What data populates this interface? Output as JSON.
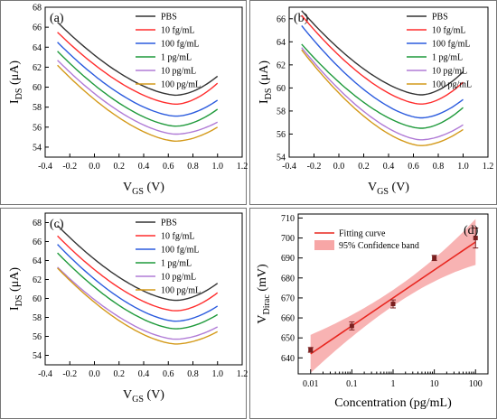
{
  "chart_data": [
    {
      "type": "line",
      "panel_label": "(a)",
      "xlabel_main": "V",
      "xlabel_sub": "GS",
      "xlabel_unit": " (V)",
      "ylabel_main": "I",
      "ylabel_sub": "DS",
      "ylabel_unit": " (μA)",
      "xlim": [
        -0.4,
        1.2
      ],
      "ylim": [
        53,
        68
      ],
      "xticks": [
        "-0.4",
        "-0.2",
        "0.0",
        "0.2",
        "0.4",
        "0.6",
        "0.8",
        "1.0",
        "1.2"
      ],
      "yticks": [
        "54",
        "56",
        "58",
        "60",
        "62",
        "64",
        "66",
        "68"
      ],
      "legend_position": "top-right",
      "series": [
        {
          "name": "PBS",
          "color": "#333333",
          "start": 66.5,
          "min": 59.2,
          "xmin": 0.66,
          "end": 61.1
        },
        {
          "name": "10 fg/mL",
          "color": "#ff2d2d",
          "start": 65.5,
          "min": 58.3,
          "xmin": 0.66,
          "end": 60.4
        },
        {
          "name": "100 fg/mL",
          "color": "#2b5bde",
          "start": 64.5,
          "min": 57.1,
          "xmin": 0.66,
          "end": 58.7
        },
        {
          "name": "1 pg/mL",
          "color": "#1f9a3b",
          "start": 63.6,
          "min": 56.1,
          "xmin": 0.66,
          "end": 57.8
        },
        {
          "name": "10 pg/mL",
          "color": "#b07bd6",
          "start": 62.7,
          "min": 55.3,
          "xmin": 0.66,
          "end": 56.5
        },
        {
          "name": "100 pg/mL",
          "color": "#d49a1a",
          "start": 62.2,
          "min": 54.6,
          "xmin": 0.66,
          "end": 56.0
        }
      ]
    },
    {
      "type": "line",
      "panel_label": "(b)",
      "xlabel_main": "V",
      "xlabel_sub": "GS",
      "xlabel_unit": " (V)",
      "ylabel_main": "I",
      "ylabel_sub": "DS",
      "ylabel_unit": " (μA)",
      "xlim": [
        -0.4,
        1.2
      ],
      "ylim": [
        54,
        67
      ],
      "xticks": [
        "-0.4",
        "-0.2",
        "0.0",
        "0.2",
        "0.4",
        "0.6",
        "0.8",
        "1.0",
        "1.2"
      ],
      "yticks": [
        "54",
        "56",
        "58",
        "60",
        "62",
        "64",
        "66"
      ],
      "legend_position": "top-right",
      "series": [
        {
          "name": "PBS",
          "color": "#333333",
          "start": 66.7,
          "min": 59.4,
          "xmin": 0.66,
          "end": 61.4
        },
        {
          "name": "10 fg/mL",
          "color": "#ff2d2d",
          "start": 66.3,
          "min": 58.6,
          "xmin": 0.66,
          "end": 60.5
        },
        {
          "name": "100 fg/mL",
          "color": "#2b5bde",
          "start": 65.4,
          "min": 57.4,
          "xmin": 0.66,
          "end": 59.0
        },
        {
          "name": "1 pg/mL",
          "color": "#1f9a3b",
          "start": 63.8,
          "min": 56.5,
          "xmin": 0.66,
          "end": 58.3
        },
        {
          "name": "10 pg/mL",
          "color": "#b07bd6",
          "start": 63.5,
          "min": 55.5,
          "xmin": 0.66,
          "end": 56.8
        },
        {
          "name": "100 pg/mL",
          "color": "#d49a1a",
          "start": 63.3,
          "min": 55.0,
          "xmin": 0.66,
          "end": 56.4
        }
      ]
    },
    {
      "type": "line",
      "panel_label": "(c)",
      "xlabel_main": "V",
      "xlabel_sub": "GS",
      "xlabel_unit": " (V)",
      "ylabel_main": "I",
      "ylabel_sub": "DS",
      "ylabel_unit": " (μA)",
      "xlim": [
        -0.4,
        1.2
      ],
      "ylim": [
        53,
        69
      ],
      "xticks": [
        "-0.4",
        "-0.2",
        "0.0",
        "0.2",
        "0.4",
        "0.6",
        "0.8",
        "1.0",
        "1.2"
      ],
      "yticks": [
        "54",
        "56",
        "58",
        "60",
        "62",
        "64",
        "66",
        "68"
      ],
      "legend_position": "top-right",
      "series": [
        {
          "name": "PBS",
          "color": "#333333",
          "start": 67.7,
          "min": 59.8,
          "xmin": 0.66,
          "end": 61.6
        },
        {
          "name": "10 fg/mL",
          "color": "#ff2d2d",
          "start": 66.6,
          "min": 58.7,
          "xmin": 0.66,
          "end": 60.6
        },
        {
          "name": "100 fg/mL",
          "color": "#2b5bde",
          "start": 65.7,
          "min": 57.6,
          "xmin": 0.66,
          "end": 59.2
        },
        {
          "name": "1 pg/mL",
          "color": "#1f9a3b",
          "start": 64.8,
          "min": 56.8,
          "xmin": 0.66,
          "end": 58.3
        },
        {
          "name": "10 pg/mL",
          "color": "#b07bd6",
          "start": 63.3,
          "min": 55.7,
          "xmin": 0.66,
          "end": 57.0
        },
        {
          "name": "100 pg/mL",
          "color": "#d49a1a",
          "start": 63.2,
          "min": 55.2,
          "xmin": 0.66,
          "end": 56.5
        }
      ]
    },
    {
      "type": "scatter",
      "panel_label": "(d)",
      "xlabel": "Concentration (pg/mL)",
      "ylabel_main": "V",
      "ylabel_sub": "Dirac",
      "ylabel_unit": " (mV)",
      "xscale": "log",
      "xlim": [
        0.005,
        200
      ],
      "ylim": [
        632,
        712
      ],
      "xtick_values": [
        0.01,
        0.1,
        1,
        10,
        100
      ],
      "xticks": [
        "0.01",
        "0.1",
        "1",
        "10",
        "100"
      ],
      "ytick_values": [
        640,
        650,
        660,
        670,
        680,
        690,
        700,
        710
      ],
      "yticks": [
        "640",
        "650",
        "660",
        "670",
        "680",
        "690",
        "700",
        "710"
      ],
      "legend_position": "top-left",
      "legend": [
        "Fitting curve",
        "95% Confidence band"
      ],
      "points": [
        {
          "x": 0.01,
          "y": 644,
          "err": 1.2
        },
        {
          "x": 0.1,
          "y": 656,
          "err": 2.0
        },
        {
          "x": 1,
          "y": 667,
          "err": 2.0
        },
        {
          "x": 10,
          "y": 690,
          "err": 1.3
        },
        {
          "x": 100,
          "y": 700,
          "err": 5.0
        }
      ],
      "fit": {
        "x_start": 0.01,
        "y_start": 642,
        "x_end": 100,
        "y_end": 698
      },
      "band": {
        "lower_start": 633,
        "lower_end": 686,
        "upper_start": 652,
        "upper_end": 709,
        "mid_halfwidth": 4
      },
      "colors": {
        "fit": "#e8261f",
        "band": "#f7a6a6",
        "points": "#7a1f1f"
      }
    }
  ]
}
